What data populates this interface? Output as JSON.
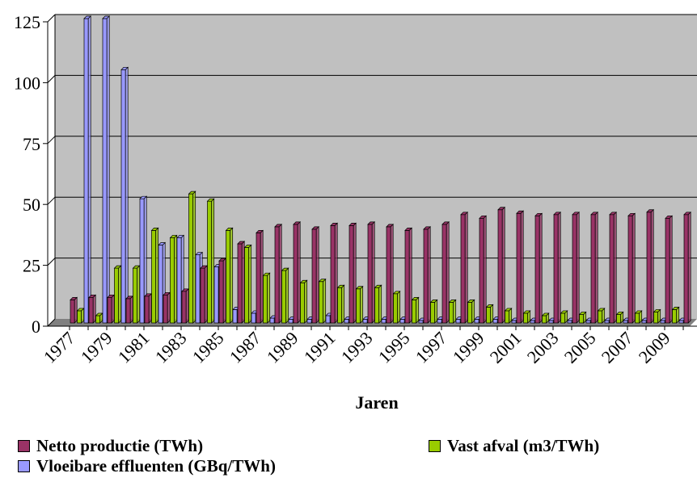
{
  "chart_data": {
    "type": "bar",
    "xlabel": "Jaren",
    "ylabel": "",
    "ylim": [
      0,
      125
    ],
    "yticks": [
      "0",
      "25",
      "50",
      "75",
      "100",
      "125"
    ],
    "grid": true,
    "legend_position": "bottom",
    "categories": [
      "1977",
      "1978",
      "1979",
      "1980",
      "1981",
      "1982",
      "1983",
      "1984",
      "1985",
      "1986",
      "1987",
      "1988",
      "1989",
      "1990",
      "1991",
      "1992",
      "1993",
      "1994",
      "1995",
      "1996",
      "1997",
      "1998",
      "1999",
      "2000",
      "2001",
      "2002",
      "2003",
      "2004",
      "2005",
      "2006",
      "2007",
      "2008",
      "2009",
      "2010"
    ],
    "tick_labels": [
      "1977",
      "",
      "1979",
      "",
      "1981",
      "",
      "1983",
      "",
      "1985",
      "",
      "1987",
      "",
      "1989",
      "",
      "1991",
      "",
      "1993",
      "",
      "1995",
      "",
      "1997",
      "",
      "1999",
      "",
      "2001",
      "",
      "2003",
      "",
      "2005",
      "",
      "2007",
      "",
      "2009",
      ""
    ],
    "series": [
      {
        "name": "Netto productie (TWh)",
        "color": "#993366",
        "values": [
          9.5,
          10.5,
          10.5,
          10,
          11,
          11.5,
          13,
          22.5,
          25.5,
          32.5,
          37,
          39.5,
          40.5,
          38.5,
          40,
          40,
          40.5,
          39.5,
          38,
          38.5,
          40.5,
          44.5,
          43,
          46.5,
          45,
          44,
          44.5,
          44.5,
          44.5,
          44.5,
          44,
          45.5,
          43,
          44.5
        ]
      },
      {
        "name": "Vast afval (m3/TWh)",
        "color": "#99cc00",
        "values": [
          5,
          3,
          22.5,
          22.5,
          38,
          35,
          53,
          50,
          38,
          31,
          19.5,
          21.5,
          16.5,
          17,
          14.5,
          14,
          14.5,
          12,
          9.5,
          8.5,
          8.5,
          8.5,
          6.5,
          5,
          4,
          3,
          4,
          3.5,
          5,
          3.5,
          4,
          4.5,
          5.5,
          5.5
        ]
      },
      {
        "name": "Vloeibare effluenten (GBq/TWh)",
        "color": "#9999ff",
        "values": [
          125,
          125,
          104,
          51,
          32,
          35,
          28,
          23,
          5.5,
          4,
          2,
          1.5,
          1.5,
          3,
          1.5,
          1.5,
          1.5,
          1.5,
          1,
          1.5,
          1.5,
          1.5,
          1.5,
          1,
          1,
          1,
          1,
          1,
          1,
          1,
          1,
          1,
          1,
          1
        ]
      }
    ]
  }
}
